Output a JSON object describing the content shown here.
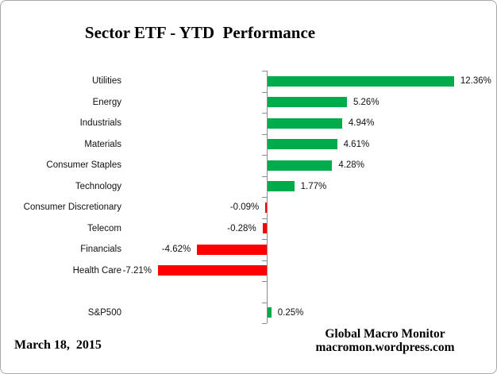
{
  "chart_data": {
    "type": "bar",
    "orientation": "horizontal",
    "title": "Sector ETF - YTD  Performance",
    "unit": "%",
    "xlim": [
      -8,
      13
    ],
    "grid": false,
    "legend": "none",
    "items": [
      {
        "label": "Utilities",
        "value": 12.36,
        "display": "12.36%"
      },
      {
        "label": "Energy",
        "value": 5.26,
        "display": "5.26%"
      },
      {
        "label": "Industrials",
        "value": 4.94,
        "display": "4.94%"
      },
      {
        "label": "Materials",
        "value": 4.61,
        "display": "4.61%"
      },
      {
        "label": "Consumer Staples",
        "value": 4.28,
        "display": "4.28%"
      },
      {
        "label": "Technology",
        "value": 1.77,
        "display": "1.77%"
      },
      {
        "label": "Consumer Discretionary",
        "value": -0.09,
        "display": "-0.09%"
      },
      {
        "label": "Telecom",
        "value": -0.28,
        "display": "-0.28%"
      },
      {
        "label": "Financials",
        "value": -4.62,
        "display": "-4.62%"
      },
      {
        "label": "Health Care",
        "value": -7.21,
        "display": "-7.21%"
      },
      {
        "label": "",
        "value": null,
        "display": ""
      },
      {
        "label": "S&P500",
        "value": 0.25,
        "display": "0.25%"
      }
    ],
    "colors": {
      "positive": "#00AB4C",
      "negative": "#FF0000",
      "axis": "#8C8C8C",
      "text": "#111111"
    }
  },
  "footer": {
    "date": "March 18,  2015",
    "credit_line1": "Global Macro Monitor",
    "credit_line2": "macromon.wordpress.com"
  }
}
